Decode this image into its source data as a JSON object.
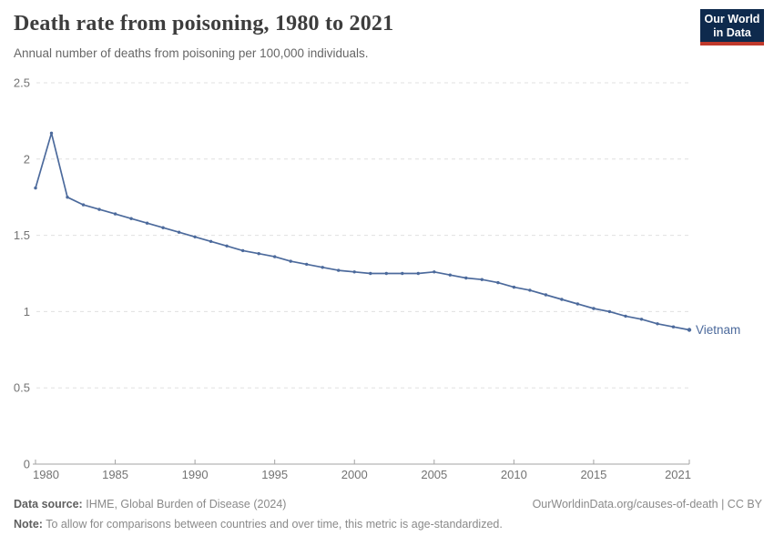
{
  "header": {
    "title": "Death rate from poisoning, 1980 to 2021",
    "subtitle": "Annual number of deaths from poisoning per 100,000 individuals.",
    "logo": {
      "line1": "Our World",
      "line2": "in Data",
      "bg_color": "#0e2a4d",
      "accent_color": "#c0392b"
    }
  },
  "chart_data": {
    "type": "line",
    "title": "Death rate from poisoning, 1980 to 2021",
    "subtitle": "Annual number of deaths from poisoning per 100,000 individuals.",
    "xlabel": "",
    "ylabel": "",
    "xlim": [
      1980,
      2021
    ],
    "ylim": [
      0,
      2.5
    ],
    "grid": "dashed-horizontal",
    "legend_position": "end-of-line-label",
    "x_ticks": [
      1980,
      1985,
      1990,
      1995,
      2000,
      2005,
      2010,
      2015,
      2021
    ],
    "x_tick_labels": [
      "1980",
      "1985",
      "1990",
      "1995",
      "2000",
      "2005",
      "2010",
      "2015",
      "2021"
    ],
    "y_ticks": [
      0,
      0.5,
      1,
      1.5,
      2,
      2.5
    ],
    "y_tick_labels": [
      "0",
      "0.5",
      "1",
      "1.5",
      "2",
      "2.5"
    ],
    "series": [
      {
        "name": "Vietnam",
        "color": "#4c6a9c",
        "x": [
          1980,
          1981,
          1982,
          1983,
          1984,
          1985,
          1986,
          1987,
          1988,
          1989,
          1990,
          1991,
          1992,
          1993,
          1994,
          1995,
          1996,
          1997,
          1998,
          1999,
          2000,
          2001,
          2002,
          2003,
          2004,
          2005,
          2006,
          2007,
          2008,
          2009,
          2010,
          2011,
          2012,
          2013,
          2014,
          2015,
          2016,
          2017,
          2018,
          2019,
          2020,
          2021
        ],
        "values": [
          1.81,
          2.17,
          1.75,
          1.7,
          1.67,
          1.64,
          1.61,
          1.58,
          1.55,
          1.52,
          1.49,
          1.46,
          1.43,
          1.4,
          1.38,
          1.36,
          1.33,
          1.31,
          1.29,
          1.27,
          1.26,
          1.25,
          1.25,
          1.25,
          1.25,
          1.26,
          1.24,
          1.22,
          1.21,
          1.19,
          1.16,
          1.14,
          1.11,
          1.08,
          1.05,
          1.02,
          1.0,
          0.97,
          0.95,
          0.92,
          0.9,
          0.88
        ]
      }
    ]
  },
  "footer": {
    "source_label": "Data source:",
    "source_value": "IHME, Global Burden of Disease (2024)",
    "attribution": "OurWorldinData.org/causes-of-death | CC BY",
    "note_label": "Note:",
    "note_value": "To allow for comparisons between countries and over time, this metric is age-standardized."
  }
}
